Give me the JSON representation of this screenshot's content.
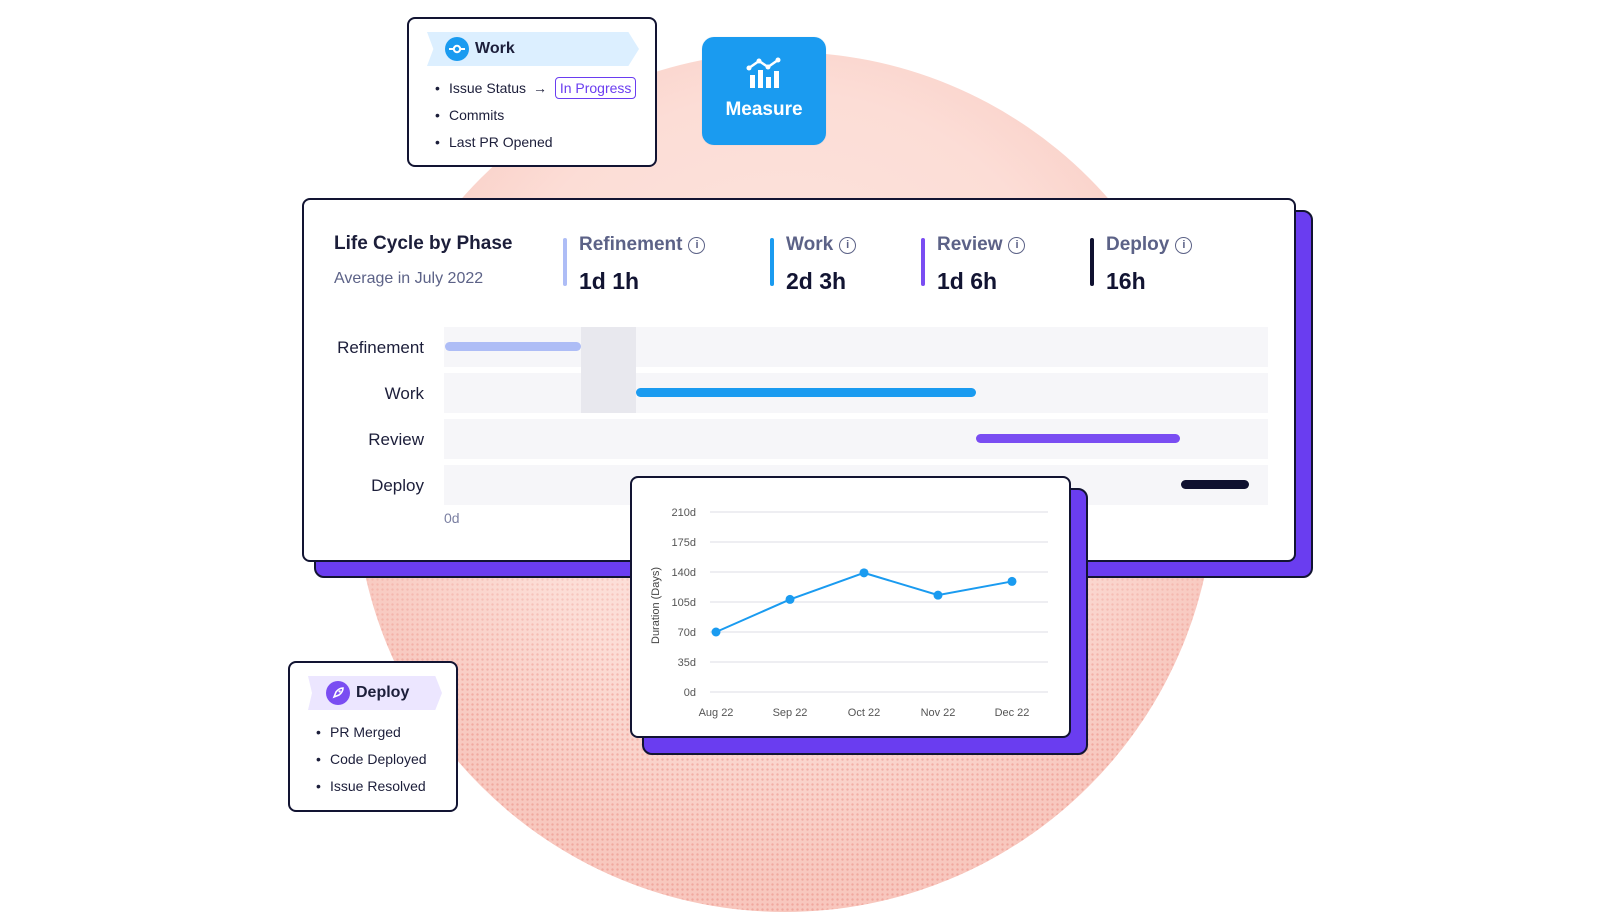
{
  "colors": {
    "refinement": "#aebdf6",
    "work": "#1a9bf0",
    "review": "#7a4df2",
    "deploy": "#0f1130",
    "shadow": "#6a3df0"
  },
  "work_card": {
    "title": "Work",
    "icon": "commit-icon",
    "items": {
      "issue_status": "Issue Status",
      "issue_status_value": "In Progress",
      "commits": "Commits",
      "last_pr": "Last PR Opened"
    }
  },
  "measure": {
    "label": "Measure",
    "icon": "bar-chart-icon"
  },
  "lifecycle": {
    "title": "Life Cycle by Phase",
    "subtitle": "Average in July 2022",
    "phases": [
      {
        "name": "Refinement",
        "value": "1d 1h"
      },
      {
        "name": "Work",
        "value": "2d 3h"
      },
      {
        "name": "Review",
        "value": "1d 6h"
      },
      {
        "name": "Deploy",
        "value": "16h"
      }
    ],
    "rows": [
      "Refinement",
      "Work",
      "Review",
      "Deploy"
    ],
    "axis_start": "0d"
  },
  "deploy_card": {
    "title": "Deploy",
    "icon": "rocket-icon",
    "items": [
      "PR Merged",
      "Code Deployed",
      "Issue Resolved"
    ]
  },
  "chart_data": {
    "type": "line",
    "categories": [
      "Aug 22",
      "Sep 22",
      "Oct 22",
      "Nov 22",
      "Dec 22"
    ],
    "values": [
      70,
      108,
      139,
      113,
      129
    ],
    "ylabel": "Duration (Days)",
    "ylim": [
      0,
      210
    ],
    "yticks": [
      0,
      35,
      70,
      105,
      140,
      175,
      210
    ],
    "ytick_labels": [
      "0d",
      "35d",
      "70d",
      "105d",
      "140d",
      "175d",
      "210d"
    ],
    "grid": true
  }
}
